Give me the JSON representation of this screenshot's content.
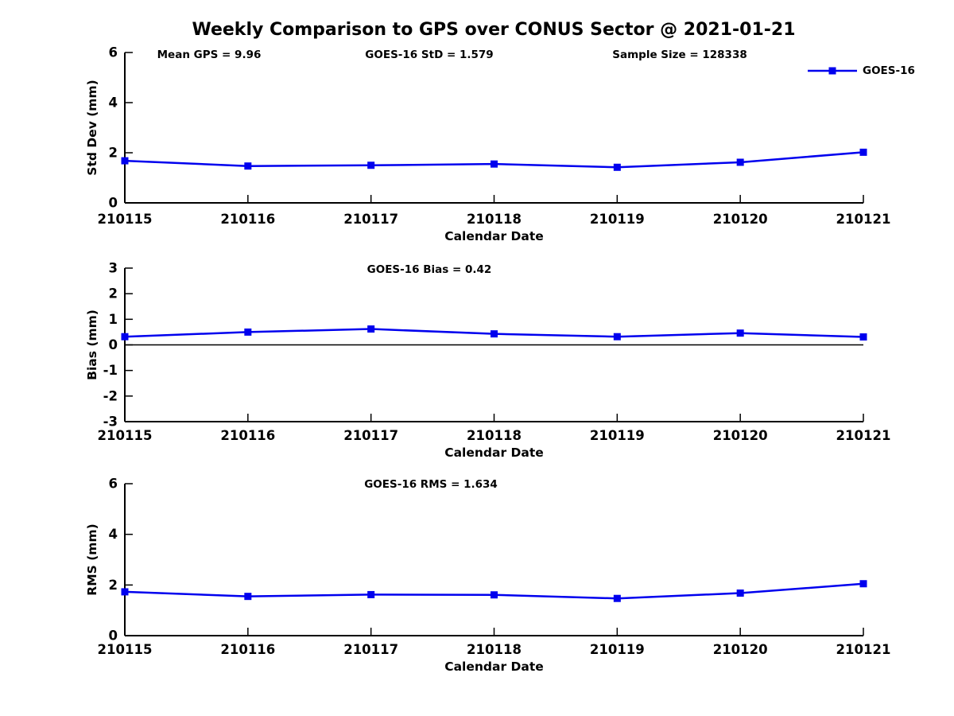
{
  "header": {
    "title": "Weekly Comparison to GPS over CONUS Sector @ 2021-01-21",
    "stats": [
      {
        "label": "Mean GPS = 9.96"
      },
      {
        "label": "GOES-16 StD = 1.579"
      },
      {
        "label": "Sample Size = 128338"
      }
    ]
  },
  "legend": {
    "label": "GOES-16"
  },
  "colors": {
    "series": "#0000ee",
    "axis": "#000000",
    "text": "#000000",
    "background": "#ffffff"
  },
  "chart_data": [
    {
      "type": "line",
      "name": "std-dev",
      "title": "",
      "xlabel": "Calendar Date",
      "ylabel": "Std Dev (mm)",
      "categories": [
        "210115",
        "210116",
        "210117",
        "210118",
        "210119",
        "210120",
        "210121"
      ],
      "series": [
        {
          "name": "GOES-16",
          "values": [
            1.68,
            1.47,
            1.5,
            1.55,
            1.42,
            1.62,
            2.02
          ]
        }
      ],
      "ylim": [
        0,
        6
      ],
      "yticks": [
        0,
        2,
        4,
        6
      ],
      "zero_line": false,
      "grid": false,
      "legend_position": "top-right"
    },
    {
      "type": "line",
      "name": "bias",
      "subtitle": "GOES-16 Bias  = 0.42",
      "xlabel": "Calendar Date",
      "ylabel": "Bias (mm)",
      "categories": [
        "210115",
        "210116",
        "210117",
        "210118",
        "210119",
        "210120",
        "210121"
      ],
      "series": [
        {
          "name": "GOES-16",
          "values": [
            0.32,
            0.5,
            0.62,
            0.43,
            0.32,
            0.46,
            0.31
          ]
        }
      ],
      "ylim": [
        -3,
        3
      ],
      "yticks": [
        -3,
        -2,
        -1,
        0,
        1,
        2,
        3
      ],
      "zero_line": true,
      "grid": false,
      "legend_position": "none"
    },
    {
      "type": "line",
      "name": "rms",
      "subtitle": "GOES-16 RMS = 1.634",
      "xlabel": "Calendar Date",
      "ylabel": "RMS (mm)",
      "categories": [
        "210115",
        "210116",
        "210117",
        "210118",
        "210119",
        "210120",
        "210121"
      ],
      "series": [
        {
          "name": "GOES-16",
          "values": [
            1.73,
            1.55,
            1.62,
            1.61,
            1.47,
            1.68,
            2.05
          ]
        }
      ],
      "ylim": [
        0,
        6
      ],
      "yticks": [
        0,
        2,
        4,
        6
      ],
      "zero_line": false,
      "grid": false,
      "legend_position": "none"
    }
  ]
}
